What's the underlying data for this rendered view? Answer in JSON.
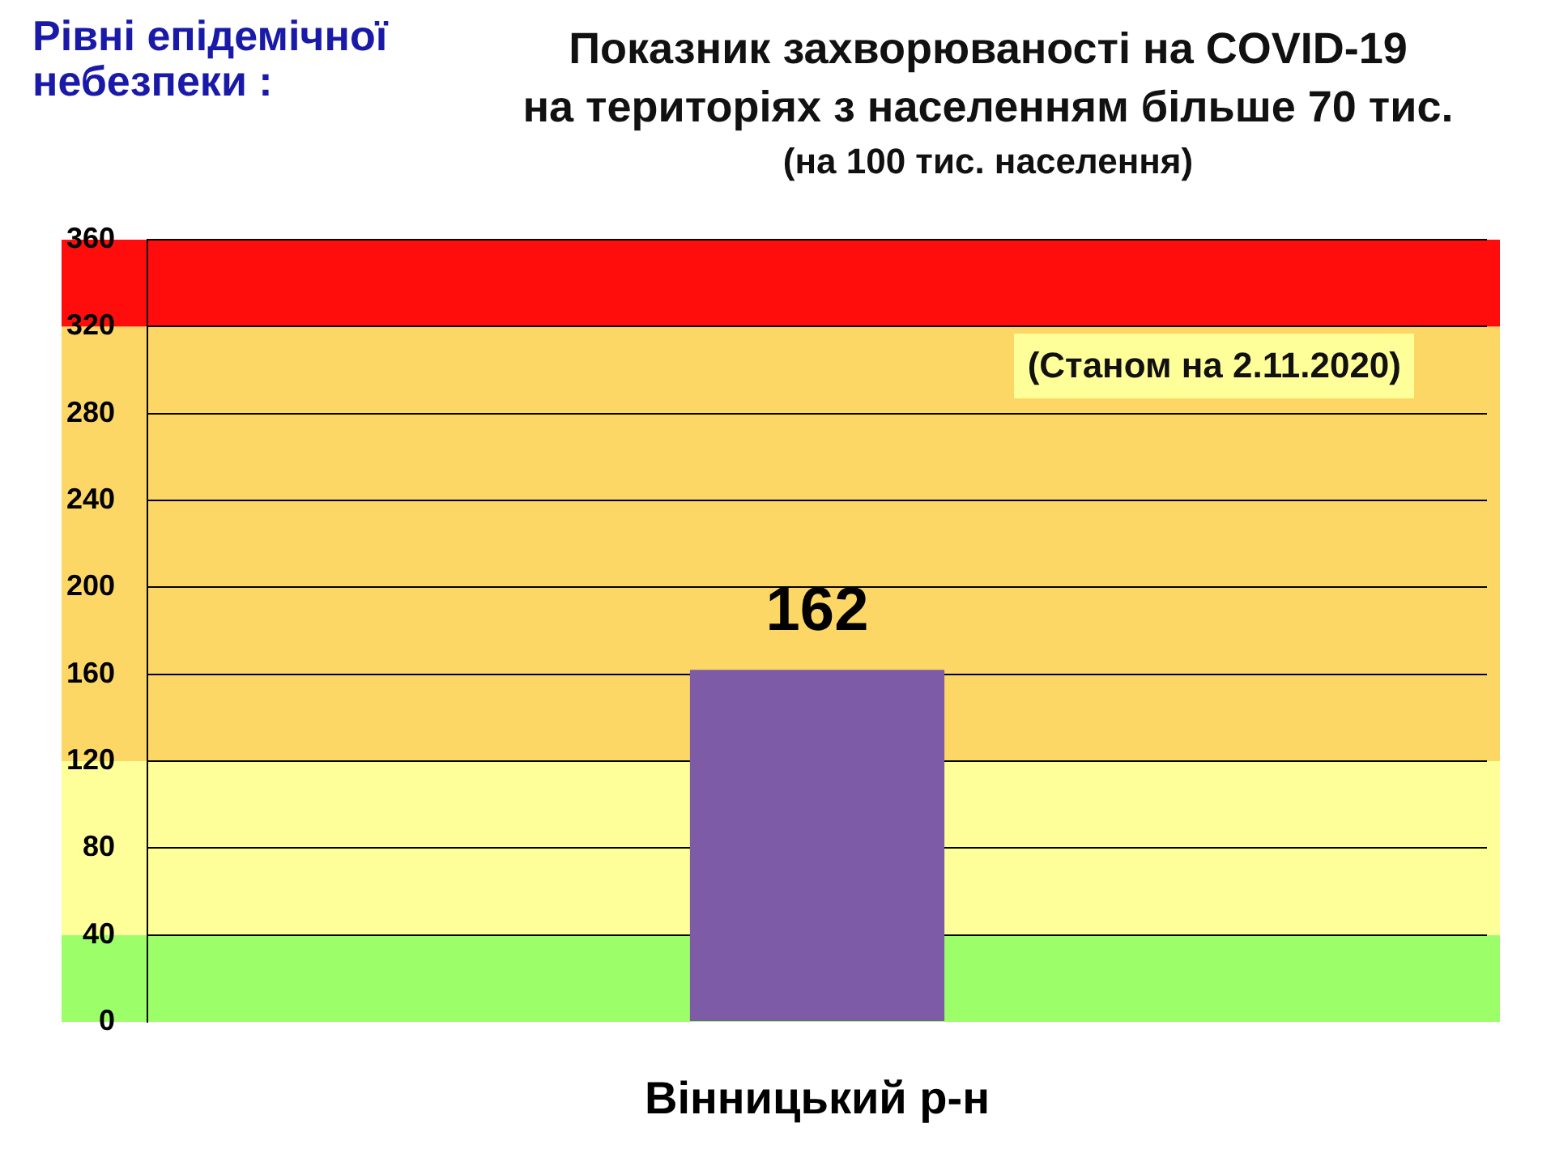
{
  "chart_data": {
    "type": "bar",
    "title": "Показник захворюваності на COVID-19\nна територіях з населенням більше 70 тис.",
    "subtitle": "(на 100 тис. населення)",
    "legend_title": "Рівні епідемічної небезпеки :",
    "annotations": [
      "(Станом на 2.11.2020)"
    ],
    "categories": [
      "Вінницький р-н"
    ],
    "values": [
      162
    ],
    "color": "#7d5ba6",
    "data_labels": true,
    "ylim": [
      0,
      360
    ],
    "yticks": [
      0,
      40,
      80,
      120,
      160,
      200,
      240,
      280,
      320,
      360
    ],
    "grid": "y",
    "bands": [
      {
        "axis": "y",
        "from": 0,
        "to": 40,
        "color": "#9cff6a"
      },
      {
        "axis": "y",
        "from": 40,
        "to": 120,
        "color": "#ffff99"
      },
      {
        "axis": "y",
        "from": 120,
        "to": 320,
        "color": "#fdd766"
      },
      {
        "axis": "y",
        "from": 320,
        "to": 360,
        "color": "#ff0d0d"
      }
    ]
  }
}
